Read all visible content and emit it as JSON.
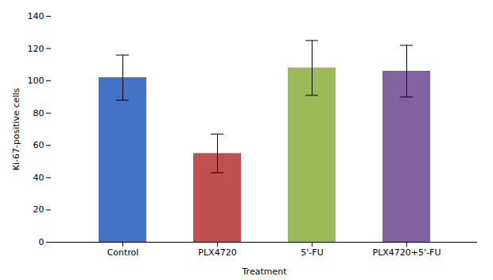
{
  "chart_data": {
    "type": "bar",
    "categories": [
      "Control",
      "PLX4720",
      "5'-FU",
      "PLX4720+5'-FU"
    ],
    "values": [
      102,
      55,
      108,
      106
    ],
    "errors": [
      14,
      12,
      17,
      16
    ],
    "colors": [
      "#4472C4",
      "#C0504D",
      "#9BBB59",
      "#8064A2"
    ],
    "xlabel": "Treatment",
    "ylabel": "Ki-67-positive cells",
    "ylim": [
      0,
      140
    ],
    "yticks": [
      0,
      20,
      40,
      60,
      80,
      100,
      120,
      140
    ]
  }
}
